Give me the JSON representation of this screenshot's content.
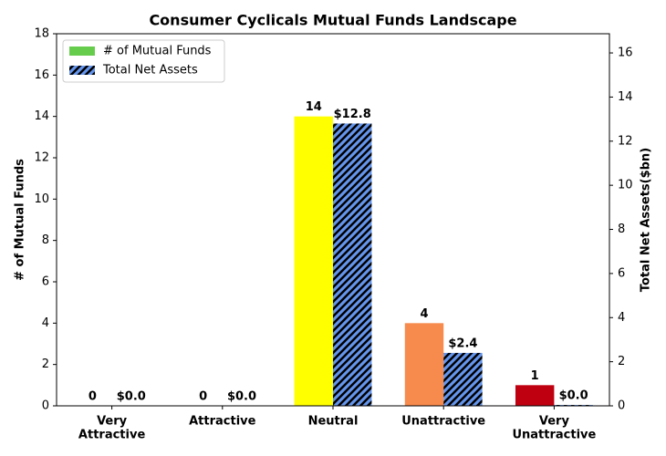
{
  "chart_data": {
    "type": "bar",
    "title": "Consumer Cyclicals Mutual Funds Landscape",
    "y_label": "# of Mutual Funds",
    "y2_label": "Total Net Assets($bn)",
    "categories": [
      [
        "Very",
        "Attractive"
      ],
      [
        "Attractive"
      ],
      [
        "Neutral"
      ],
      [
        "Unattractive"
      ],
      [
        "Very",
        "Unattractive"
      ]
    ],
    "series": [
      {
        "name": "# of Mutual Funds",
        "color": "#66cc4c",
        "colors": [
          "#66cc4c",
          "#99dd66",
          "#ffff00",
          "#f78a4d",
          "#bf0010"
        ],
        "values": [
          0,
          0,
          14,
          4,
          1
        ]
      },
      {
        "name": "Total Net Assets",
        "color": "#6495ed",
        "hatch": true,
        "axis": "y2",
        "values": [
          0,
          0,
          12.8,
          2.4,
          0.04
        ],
        "value_labels": [
          "$0.0",
          "$0.0",
          "$12.8",
          "$2.4",
          "$0.0"
        ]
      }
    ],
    "ylim": [
      0,
      18
    ],
    "yticks": [
      0,
      2,
      4,
      6,
      8,
      10,
      12,
      14,
      16,
      18
    ],
    "y2lim": [
      0,
      16.87
    ],
    "y2ticks": [
      0,
      2,
      4,
      6,
      8,
      10,
      12,
      14,
      16
    ],
    "legend": "upper left"
  }
}
